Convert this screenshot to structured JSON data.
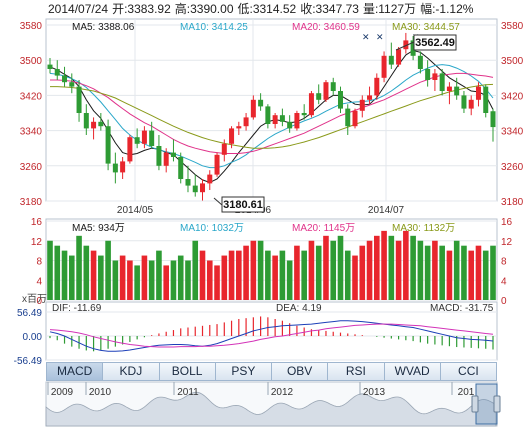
{
  "header": {
    "date": "2014/07/24",
    "open": "开:3383.92",
    "high": "高:3390.00",
    "low": "低:3314.52",
    "close": "收:3347.73",
    "volume": "量:1127万",
    "change": "幅:-1.12%"
  },
  "price_panel": {
    "legend": [
      {
        "label": "MA5: 3388.06",
        "color": "#1a1a1a"
      },
      {
        "label": "MA10: 3414.25",
        "color": "#2aa7c9"
      },
      {
        "label": "MA20: 3460.59",
        "color": "#e0338a"
      },
      {
        "label": "MA30: 3444.57",
        "color": "#8a9a1a"
      }
    ],
    "yticks": [
      "3580",
      "3500",
      "3420",
      "3340",
      "3260",
      "3180"
    ],
    "xticks": [
      "2014/05",
      "2014/06",
      "2014/07"
    ],
    "high_label": "3562.49",
    "low_label": "3180.61"
  },
  "volume_panel": {
    "legend": [
      {
        "label": "MA5: 934万",
        "color": "#1a1a1a"
      },
      {
        "label": "MA10: 1032万",
        "color": "#2aa7c9"
      },
      {
        "label": "MA20: 1145万",
        "color": "#e0338a"
      },
      {
        "label": "MA30: 1132万",
        "color": "#8a9a1a"
      }
    ],
    "yticks": [
      "16",
      "12",
      "8",
      "4",
      "0"
    ],
    "unit": "x百万"
  },
  "macd_panel": {
    "dif": "DIF: -11.69",
    "dea": "DEA: 4.19",
    "macd": "MACD: -31.75",
    "yticks": [
      "56.49",
      "0.00",
      "-56.49"
    ]
  },
  "tabs": [
    "MACD",
    "KDJ",
    "BOLL",
    "PSY",
    "OBV",
    "RSI",
    "WVAD",
    "CCI"
  ],
  "navigator": {
    "years": [
      "2009",
      "2010",
      "2011",
      "2012",
      "2013",
      "201"
    ]
  },
  "colors": {
    "up": "#e8262d",
    "down": "#2e9b34",
    "grid": "#e3e7ec"
  },
  "chart_data": [
    {
      "type": "candlestick",
      "title": "",
      "ylim": [
        3180,
        3580
      ],
      "x": [
        "2014/05",
        "2014/06",
        "2014/07"
      ],
      "ohlc": [
        [
          3490,
          3505,
          3470,
          3480
        ],
        [
          3480,
          3500,
          3455,
          3465
        ],
        [
          3465,
          3485,
          3440,
          3450
        ],
        [
          3450,
          3470,
          3425,
          3440
        ],
        [
          3440,
          3455,
          3360,
          3380
        ],
        [
          3380,
          3400,
          3330,
          3345
        ],
        [
          3345,
          3370,
          3320,
          3360
        ],
        [
          3360,
          3380,
          3340,
          3350
        ],
        [
          3350,
          3365,
          3250,
          3265
        ],
        [
          3265,
          3290,
          3220,
          3245
        ],
        [
          3245,
          3280,
          3230,
          3270
        ],
        [
          3270,
          3330,
          3265,
          3325
        ],
        [
          3325,
          3345,
          3300,
          3310
        ],
        [
          3310,
          3350,
          3300,
          3340
        ],
        [
          3340,
          3360,
          3300,
          3305
        ],
        [
          3305,
          3330,
          3250,
          3260
        ],
        [
          3260,
          3300,
          3245,
          3290
        ],
        [
          3290,
          3320,
          3270,
          3280
        ],
        [
          3280,
          3290,
          3220,
          3230
        ],
        [
          3230,
          3260,
          3200,
          3215
        ],
        [
          3215,
          3240,
          3190,
          3200
        ],
        [
          3200,
          3230,
          3181,
          3220
        ],
        [
          3220,
          3250,
          3205,
          3240
        ],
        [
          3240,
          3290,
          3235,
          3285
        ],
        [
          3285,
          3320,
          3270,
          3310
        ],
        [
          3310,
          3350,
          3300,
          3345
        ],
        [
          3345,
          3360,
          3330,
          3350
        ],
        [
          3350,
          3380,
          3340,
          3370
        ],
        [
          3370,
          3420,
          3365,
          3410
        ],
        [
          3410,
          3425,
          3385,
          3395
        ],
        [
          3395,
          3400,
          3345,
          3355
        ],
        [
          3355,
          3380,
          3345,
          3375
        ],
        [
          3375,
          3390,
          3350,
          3360
        ],
        [
          3360,
          3375,
          3335,
          3345
        ],
        [
          3345,
          3385,
          3340,
          3380
        ],
        [
          3380,
          3400,
          3365,
          3375
        ],
        [
          3375,
          3430,
          3370,
          3425
        ],
        [
          3425,
          3445,
          3400,
          3410
        ],
        [
          3410,
          3455,
          3405,
          3450
        ],
        [
          3450,
          3460,
          3420,
          3430
        ],
        [
          3430,
          3440,
          3380,
          3390
        ],
        [
          3390,
          3400,
          3330,
          3350
        ],
        [
          3350,
          3390,
          3345,
          3385
        ],
        [
          3385,
          3420,
          3370,
          3410
        ],
        [
          3410,
          3440,
          3400,
          3420
        ],
        [
          3420,
          3470,
          3410,
          3460
        ],
        [
          3460,
          3520,
          3450,
          3510
        ],
        [
          3510,
          3540,
          3480,
          3490
        ],
        [
          3490,
          3530,
          3485,
          3525
        ],
        [
          3525,
          3562,
          3515,
          3545
        ],
        [
          3545,
          3555,
          3500,
          3510
        ],
        [
          3510,
          3520,
          3470,
          3480
        ],
        [
          3480,
          3500,
          3440,
          3455
        ],
        [
          3455,
          3480,
          3430,
          3470
        ],
        [
          3470,
          3480,
          3420,
          3430
        ],
        [
          3430,
          3450,
          3400,
          3440
        ],
        [
          3440,
          3460,
          3410,
          3420
        ],
        [
          3420,
          3430,
          3380,
          3390
        ],
        [
          3390,
          3420,
          3375,
          3410
        ],
        [
          3410,
          3450,
          3395,
          3440
        ],
        [
          3440,
          3445,
          3370,
          3380
        ],
        [
          3384,
          3390,
          3315,
          3348
        ]
      ],
      "ma": {
        "MA5": [
          3485,
          3478,
          3468,
          3458,
          3440,
          3410,
          3385,
          3368,
          3340,
          3312,
          3290,
          3285,
          3288,
          3295,
          3300,
          3298,
          3290,
          3285,
          3270,
          3255,
          3240,
          3228,
          3222,
          3230,
          3248,
          3268,
          3290,
          3310,
          3330,
          3350,
          3360,
          3365,
          3362,
          3358,
          3360,
          3368,
          3380,
          3395,
          3410,
          3420,
          3420,
          3410,
          3400,
          3398,
          3400,
          3415,
          3440,
          3465,
          3490,
          3512,
          3522,
          3518,
          3505,
          3490,
          3475,
          3460,
          3450,
          3440,
          3430,
          3428,
          3420,
          3388
        ],
        "MA10": [
          3470,
          3468,
          3464,
          3458,
          3450,
          3438,
          3422,
          3405,
          3385,
          3365,
          3345,
          3330,
          3318,
          3310,
          3302,
          3296,
          3292,
          3288,
          3282,
          3275,
          3268,
          3260,
          3256,
          3256,
          3260,
          3268,
          3275,
          3285,
          3298,
          3310,
          3322,
          3332,
          3340,
          3348,
          3355,
          3362,
          3368,
          3375,
          3384,
          3392,
          3400,
          3403,
          3405,
          3406,
          3408,
          3412,
          3420,
          3430,
          3442,
          3455,
          3466,
          3474,
          3482,
          3488,
          3490,
          3488,
          3482,
          3474,
          3464,
          3452,
          3435,
          3414
        ],
        "MA20": [
          3455,
          3455,
          3454,
          3452,
          3448,
          3442,
          3435,
          3425,
          3415,
          3402,
          3390,
          3378,
          3368,
          3358,
          3350,
          3340,
          3330,
          3320,
          3312,
          3305,
          3300,
          3296,
          3292,
          3290,
          3288,
          3288,
          3288,
          3290,
          3293,
          3298,
          3304,
          3310,
          3316,
          3322,
          3328,
          3334,
          3342,
          3350,
          3358,
          3366,
          3374,
          3380,
          3386,
          3392,
          3398,
          3404,
          3410,
          3418,
          3426,
          3434,
          3442,
          3450,
          3456,
          3462,
          3466,
          3468,
          3470,
          3470,
          3468,
          3466,
          3464,
          3461
        ],
        "MA30": [
          3440,
          3440,
          3439,
          3438,
          3436,
          3433,
          3430,
          3425,
          3420,
          3414,
          3406,
          3398,
          3390,
          3382,
          3374,
          3366,
          3358,
          3350,
          3343,
          3336,
          3330,
          3324,
          3319,
          3315,
          3311,
          3308,
          3305,
          3302,
          3300,
          3300,
          3300,
          3301,
          3303,
          3306,
          3310,
          3314,
          3319,
          3324,
          3330,
          3336,
          3342,
          3348,
          3354,
          3360,
          3366,
          3372,
          3378,
          3384,
          3390,
          3396,
          3402,
          3408,
          3413,
          3418,
          3423,
          3428,
          3432,
          3436,
          3439,
          3442,
          3444,
          3445
        ]
      }
    },
    {
      "type": "bar",
      "title": "",
      "ylim": [
        0,
        16
      ],
      "values": [
        12,
        11,
        10,
        9,
        13,
        11,
        10,
        9,
        12,
        8,
        9,
        8,
        7,
        9,
        8,
        10,
        7,
        8,
        9,
        8,
        12,
        10,
        8,
        7,
        9,
        10,
        10,
        11,
        12,
        12,
        10,
        9,
        10,
        8,
        11,
        10,
        12,
        11,
        13,
        12,
        13,
        10,
        9,
        11,
        12,
        13,
        14,
        13,
        12,
        14,
        13,
        12,
        11,
        12,
        11,
        10,
        12,
        11,
        10,
        11,
        10,
        11
      ]
    },
    {
      "type": "bar",
      "title": "",
      "ylim": [
        -56.49,
        56.49
      ],
      "macd": [
        -5,
        -10,
        -18,
        -25,
        -30,
        -34,
        -36,
        -34,
        -30,
        -25,
        -20,
        -14,
        -8,
        -3,
        2,
        6,
        10,
        14,
        18,
        20,
        22,
        24,
        26,
        28,
        32,
        36,
        40,
        42,
        44,
        46,
        44,
        40,
        36,
        30,
        24,
        20,
        16,
        14,
        12,
        10,
        8,
        6,
        4,
        2,
        0,
        -2,
        -4,
        -6,
        -8,
        -10,
        -12,
        -15,
        -18,
        -20,
        -22,
        -24,
        -26,
        -27,
        -28,
        -29,
        -30,
        -31.75
      ],
      "dif": [
        10,
        6,
        0,
        -8,
        -16,
        -24,
        -30,
        -34,
        -36,
        -36,
        -35,
        -33,
        -30,
        -27,
        -24,
        -22,
        -21,
        -20,
        -20,
        -21,
        -23,
        -24,
        -22,
        -18,
        -12,
        -6,
        0,
        6,
        12,
        16,
        20,
        22,
        24,
        25,
        26,
        27,
        28,
        30,
        32,
        34,
        36,
        36,
        35,
        34,
        32,
        30,
        28,
        26,
        24,
        22,
        20,
        16,
        12,
        8,
        4,
        0,
        -4,
        -6,
        -8,
        -9,
        -10,
        -11.69
      ],
      "dea": [
        15,
        14,
        12,
        10,
        7,
        3,
        -2,
        -6,
        -10,
        -14,
        -17,
        -20,
        -22,
        -24,
        -25,
        -26,
        -26,
        -26,
        -25,
        -25,
        -25,
        -24,
        -24,
        -23,
        -22,
        -20,
        -18,
        -15,
        -12,
        -8,
        -5,
        -2,
        0,
        3,
        6,
        9,
        12,
        14,
        17,
        19,
        21,
        23,
        25,
        26,
        27,
        28,
        28,
        28,
        27,
        26,
        25,
        24,
        22,
        20,
        18,
        16,
        14,
        12,
        10,
        8,
        6,
        4.19
      ]
    }
  ]
}
